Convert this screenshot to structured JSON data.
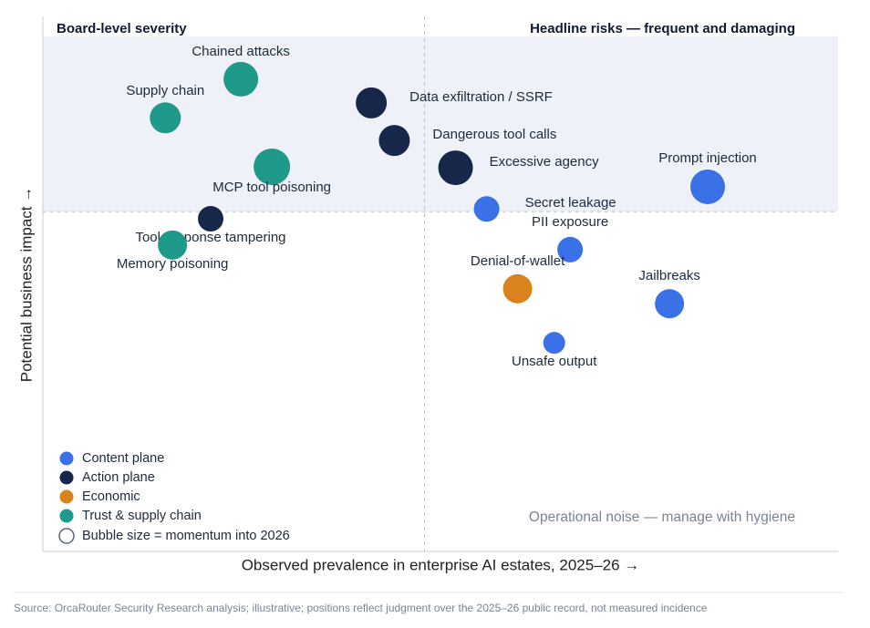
{
  "chart_data": {
    "type": "bubble",
    "x_label": "Observed prevalence in enterprise AI estates, 2025–26 →",
    "y_label": "Potential business impact →",
    "xlim": [
      0,
      100
    ],
    "ylim": [
      0,
      100
    ],
    "x_divider": 48,
    "y_divider": 66,
    "quadrant_labels": {
      "top_left": "Board-level severity",
      "top_right": "Headline risks — frequent and damaging",
      "bottom_right": "Operational noise — manage with hygiene"
    },
    "series": [
      {
        "name": "Content plane",
        "color": "#3a71e6",
        "labels": [
          "Secret leakage",
          "Prompt injection",
          "PII exposure",
          "Jailbreaks",
          "Unsafe output"
        ],
        "x": [
          55.8,
          83.6,
          66.3,
          78.8,
          64.3
        ],
        "y": [
          66.5,
          70.8,
          58.6,
          48.1,
          40.5
        ],
        "sizes": [
          14,
          19,
          14,
          16,
          12
        ]
      },
      {
        "name": "Action plane",
        "color": "#17274a",
        "labels": [
          "Tool-response tampering",
          "Data exfiltration / SSRF",
          "Dangerous tool calls",
          "Excessive agency"
        ],
        "x": [
          21.1,
          41.3,
          44.2,
          51.9
        ],
        "y": [
          64.6,
          87.1,
          79.8,
          74.5
        ],
        "sizes": [
          14,
          17,
          17,
          19
        ]
      },
      {
        "name": "Economic",
        "color": "#d9821e",
        "labels": [
          "Denial-of-wallet"
        ],
        "x": [
          59.7
        ],
        "y": [
          51.0
        ],
        "sizes": [
          16
        ]
      },
      {
        "name": "Trust & supply chain",
        "color": "#1f9a8a",
        "labels": [
          "Chained attacks",
          "Supply chain",
          "MCP tool poisoning",
          "Memory poisoning"
        ],
        "x": [
          24.9,
          15.4,
          28.8,
          16.3
        ],
        "y": [
          91.7,
          84.2,
          74.7,
          59.5
        ],
        "sizes": [
          19,
          17,
          20,
          16
        ]
      }
    ],
    "size_legend": "Bubble size = momentum into 2026",
    "source": "Source: OrcaRouter Security Research analysis; illustrative; positions reflect judgment over the 2025–26 public record, not measured incidence"
  }
}
